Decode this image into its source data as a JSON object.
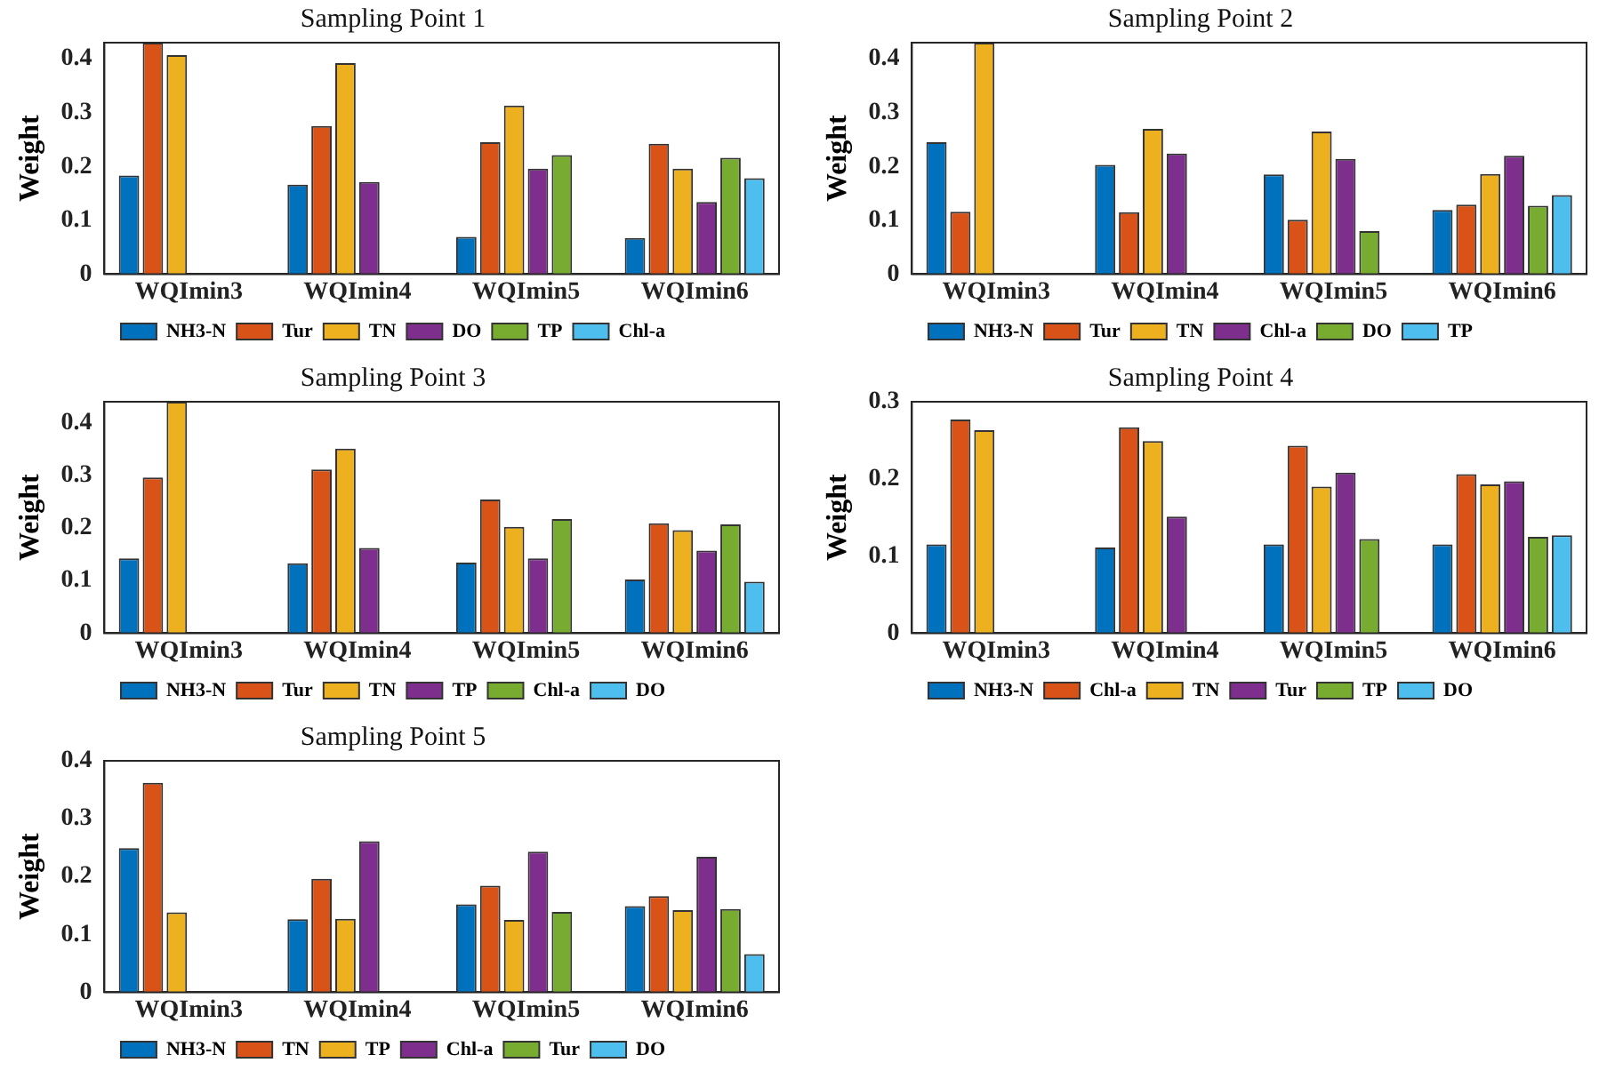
{
  "chart_data": [
    {
      "type": "bar",
      "title": "Sampling Point 1",
      "ylabel": "Weight",
      "categories": [
        "WQImin3",
        "WQImin4",
        "WQImin5",
        "WQImin6"
      ],
      "ylim": [
        0,
        0.43
      ],
      "yticks": [
        0,
        0.1,
        0.2,
        0.3,
        0.4
      ],
      "grid": false,
      "legend": "bottom",
      "series": [
        {
          "name": "NH3-N",
          "color": "#0072bd",
          "values": [
            0.183,
            0.166,
            0.069,
            0.067
          ]
        },
        {
          "name": "Tur",
          "color": "#d95319",
          "values": [
            0.43,
            0.275,
            0.245,
            0.242
          ]
        },
        {
          "name": "TN",
          "color": "#edb120",
          "values": [
            0.407,
            0.392,
            0.313,
            0.196
          ]
        },
        {
          "name": "DO",
          "color": "#7e2f8e",
          "values": [
            null,
            0.171,
            0.196,
            0.134
          ]
        },
        {
          "name": "TP",
          "color": "#77ac30",
          "values": [
            null,
            null,
            0.221,
            0.216
          ]
        },
        {
          "name": "Chl-a",
          "color": "#4dbeee",
          "values": [
            null,
            null,
            null,
            0.178
          ]
        }
      ]
    },
    {
      "type": "bar",
      "title": "Sampling Point 2",
      "ylabel": "Weight",
      "categories": [
        "WQImin3",
        "WQImin4",
        "WQImin5",
        "WQImin6"
      ],
      "ylim": [
        0,
        0.43
      ],
      "yticks": [
        0,
        0.1,
        0.2,
        0.3,
        0.4
      ],
      "grid": false,
      "legend": "bottom",
      "series": [
        {
          "name": "NH3-N",
          "color": "#0072bd",
          "values": [
            0.245,
            0.203,
            0.185,
            0.119
          ]
        },
        {
          "name": "Tur",
          "color": "#d95319",
          "values": [
            0.116,
            0.115,
            0.101,
            0.129
          ]
        },
        {
          "name": "TN",
          "color": "#edb120",
          "values": [
            0.43,
            0.27,
            0.265,
            0.186
          ]
        },
        {
          "name": "Chl-a",
          "color": "#7e2f8e",
          "values": [
            null,
            0.224,
            0.214,
            0.22
          ]
        },
        {
          "name": "DO",
          "color": "#77ac30",
          "values": [
            null,
            null,
            0.08,
            0.127
          ]
        },
        {
          "name": "TP",
          "color": "#4dbeee",
          "values": [
            null,
            null,
            null,
            0.147
          ]
        }
      ]
    },
    {
      "type": "bar",
      "title": "Sampling Point 3",
      "ylabel": "Weight",
      "categories": [
        "WQImin3",
        "WQImin4",
        "WQImin5",
        "WQImin6"
      ],
      "ylim": [
        0,
        0.44
      ],
      "yticks": [
        0,
        0.1,
        0.2,
        0.3,
        0.4
      ],
      "grid": false,
      "legend": "bottom",
      "series": [
        {
          "name": "NH3-N",
          "color": "#0072bd",
          "values": [
            0.142,
            0.133,
            0.134,
            0.102
          ]
        },
        {
          "name": "Tur",
          "color": "#d95319",
          "values": [
            0.296,
            0.311,
            0.254,
            0.209
          ]
        },
        {
          "name": "TN",
          "color": "#edb120",
          "values": [
            0.44,
            0.351,
            0.202,
            0.196
          ]
        },
        {
          "name": "TP",
          "color": "#7e2f8e",
          "values": [
            null,
            0.162,
            0.142,
            0.157
          ]
        },
        {
          "name": "Chl-a",
          "color": "#77ac30",
          "values": [
            null,
            null,
            0.217,
            0.207
          ]
        },
        {
          "name": "DO",
          "color": "#4dbeee",
          "values": [
            null,
            null,
            null,
            0.098
          ]
        }
      ]
    },
    {
      "type": "bar",
      "title": "Sampling Point 4",
      "ylabel": "Weight",
      "categories": [
        "WQImin3",
        "WQImin4",
        "WQImin5",
        "WQImin6"
      ],
      "ylim": [
        0,
        0.3
      ],
      "yticks": [
        0,
        0.1,
        0.2,
        0.3
      ],
      "grid": false,
      "legend": "bottom",
      "series": [
        {
          "name": "NH3-N",
          "color": "#0072bd",
          "values": [
            0.115,
            0.111,
            0.115,
            0.115
          ]
        },
        {
          "name": "Chl-a",
          "color": "#d95319",
          "values": [
            0.277,
            0.267,
            0.243,
            0.206
          ]
        },
        {
          "name": "TN",
          "color": "#edb120",
          "values": [
            0.263,
            0.249,
            0.19,
            0.193
          ]
        },
        {
          "name": "Tur",
          "color": "#7e2f8e",
          "values": [
            null,
            0.151,
            0.208,
            0.197
          ]
        },
        {
          "name": "TP",
          "color": "#77ac30",
          "values": [
            null,
            null,
            0.122,
            0.125
          ]
        },
        {
          "name": "DO",
          "color": "#4dbeee",
          "values": [
            null,
            null,
            null,
            0.127
          ]
        }
      ]
    },
    {
      "type": "bar",
      "title": "Sampling Point 5",
      "ylabel": "Weight",
      "categories": [
        "WQImin3",
        "WQImin4",
        "WQImin5",
        "WQImin6"
      ],
      "ylim": [
        0,
        0.4
      ],
      "yticks": [
        0,
        0.1,
        0.2,
        0.3,
        0.4
      ],
      "grid": false,
      "legend": "bottom",
      "series": [
        {
          "name": "NH3-N",
          "color": "#0072bd",
          "values": [
            0.249,
            0.126,
            0.152,
            0.149
          ]
        },
        {
          "name": "TN",
          "color": "#d95319",
          "values": [
            0.362,
            0.196,
            0.184,
            0.166
          ]
        },
        {
          "name": "TP",
          "color": "#edb120",
          "values": [
            0.138,
            0.127,
            0.125,
            0.142
          ]
        },
        {
          "name": "Chl-a",
          "color": "#7e2f8e",
          "values": [
            null,
            0.261,
            0.243,
            0.234
          ]
        },
        {
          "name": "Tur",
          "color": "#77ac30",
          "values": [
            null,
            null,
            0.139,
            0.144
          ]
        },
        {
          "name": "DO",
          "color": "#4dbeee",
          "values": [
            null,
            null,
            null,
            0.066
          ]
        }
      ]
    }
  ]
}
